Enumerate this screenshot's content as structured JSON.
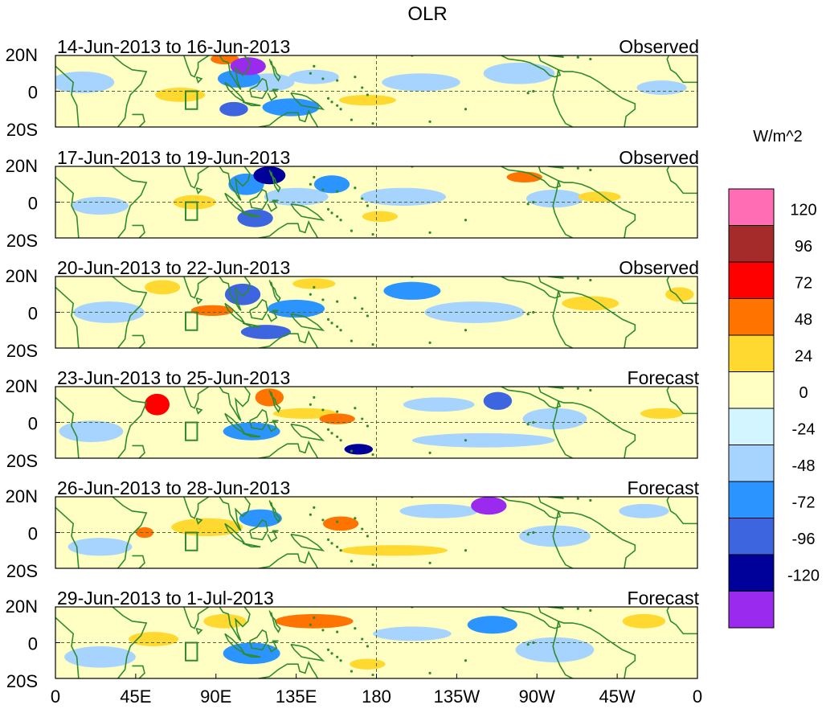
{
  "chart_data": {
    "type": "heatmap",
    "title": "OLR",
    "units_label": "W/m^2",
    "y_ticks": [
      "20N",
      "0",
      "20S"
    ],
    "x_ticks": [
      "0",
      "45E",
      "90E",
      "135E",
      "180",
      "135W",
      "90W",
      "45W",
      "0"
    ],
    "x_tick_lon": [
      0,
      45,
      90,
      135,
      180,
      225,
      270,
      315,
      360
    ],
    "lon_range": [
      0,
      360
    ],
    "lat_range": [
      -20,
      20
    ],
    "panels": [
      {
        "period": "14-Jun-2013 to 16-Jun-2013",
        "kind": "Observed"
      },
      {
        "period": "17-Jun-2013 to 19-Jun-2013",
        "kind": "Observed"
      },
      {
        "period": "20-Jun-2013 to 22-Jun-2013",
        "kind": "Observed"
      },
      {
        "period": "23-Jun-2013 to 25-Jun-2013",
        "kind": "Forecast"
      },
      {
        "period": "26-Jun-2013 to 28-Jun-2013",
        "kind": "Forecast"
      },
      {
        "period": "29-Jun-2013 to 1-Jul-2013",
        "kind": "Forecast"
      }
    ],
    "colorbar": {
      "labels": [
        "120",
        "96",
        "72",
        "48",
        "24",
        "0",
        "-24",
        "-48",
        "-72",
        "-96",
        "-120"
      ],
      "colors": [
        "#ff6eb4",
        "#a52a2a",
        "#ff0000",
        "#ff7400",
        "#ffd92f",
        "#ffffc4",
        "#d2f5ff",
        "#a6d4ff",
        "#2b94ff",
        "#3d65e0",
        "#00009a",
        "#9a2aee"
      ]
    },
    "background_color": "#ffffc4",
    "land_color": "#2e8b2e",
    "features": [
      [
        {
          "lon": 70,
          "lat": -2,
          "rx": 14,
          "ry": 4,
          "v": 24
        },
        {
          "lon": 108,
          "lat": 14,
          "rx": 10,
          "ry": 5,
          "v": -120
        },
        {
          "lon": 95,
          "lat": 18,
          "rx": 8,
          "ry": 3,
          "v": 48
        },
        {
          "lon": 103,
          "lat": 7,
          "rx": 12,
          "ry": 5,
          "v": -48
        },
        {
          "lon": 120,
          "lat": 5,
          "rx": 14,
          "ry": 5,
          "v": -24
        },
        {
          "lon": 100,
          "lat": -10,
          "rx": 8,
          "ry": 4,
          "v": -72
        },
        {
          "lon": 132,
          "lat": -9,
          "rx": 16,
          "ry": 5,
          "v": -48
        },
        {
          "lon": 145,
          "lat": 8,
          "rx": 14,
          "ry": 4,
          "v": -24
        },
        {
          "lon": 205,
          "lat": 5,
          "rx": 22,
          "ry": 5,
          "v": -24
        },
        {
          "lon": 260,
          "lat": 10,
          "rx": 20,
          "ry": 6,
          "v": -24
        },
        {
          "lon": 15,
          "lat": 5,
          "rx": 18,
          "ry": 6,
          "v": -24
        },
        {
          "lon": 340,
          "lat": 2,
          "rx": 14,
          "ry": 4,
          "v": -24
        },
        {
          "lon": 175,
          "lat": -5,
          "rx": 16,
          "ry": 3,
          "v": 24
        }
      ],
      [
        {
          "lon": 78,
          "lat": 0,
          "rx": 12,
          "ry": 4,
          "v": 24
        },
        {
          "lon": 120,
          "lat": 15,
          "rx": 9,
          "ry": 5,
          "v": -96
        },
        {
          "lon": 107,
          "lat": 10,
          "rx": 10,
          "ry": 6,
          "v": -48
        },
        {
          "lon": 112,
          "lat": -9,
          "rx": 10,
          "ry": 5,
          "v": -72
        },
        {
          "lon": 135,
          "lat": 3,
          "rx": 18,
          "ry": 5,
          "v": -24
        },
        {
          "lon": 155,
          "lat": 10,
          "rx": 10,
          "ry": 5,
          "v": -48
        },
        {
          "lon": 195,
          "lat": 3,
          "rx": 24,
          "ry": 5,
          "v": -24
        },
        {
          "lon": 263,
          "lat": 14,
          "rx": 10,
          "ry": 3,
          "v": 48
        },
        {
          "lon": 280,
          "lat": 2,
          "rx": 16,
          "ry": 5,
          "v": -24
        },
        {
          "lon": 305,
          "lat": 3,
          "rx": 12,
          "ry": 3,
          "v": 24
        },
        {
          "lon": 25,
          "lat": -2,
          "rx": 16,
          "ry": 5,
          "v": -24
        },
        {
          "lon": 182,
          "lat": -8,
          "rx": 10,
          "ry": 3,
          "v": 24
        }
      ],
      [
        {
          "lon": 60,
          "lat": 14,
          "rx": 10,
          "ry": 4,
          "v": 24
        },
        {
          "lon": 88,
          "lat": 1,
          "rx": 12,
          "ry": 3,
          "v": 48
        },
        {
          "lon": 105,
          "lat": 10,
          "rx": 10,
          "ry": 6,
          "v": -72
        },
        {
          "lon": 118,
          "lat": -11,
          "rx": 14,
          "ry": 4,
          "v": -72
        },
        {
          "lon": 135,
          "lat": 2,
          "rx": 16,
          "ry": 5,
          "v": -48
        },
        {
          "lon": 145,
          "lat": 16,
          "rx": 12,
          "ry": 3,
          "v": 24
        },
        {
          "lon": 200,
          "lat": 12,
          "rx": 16,
          "ry": 5,
          "v": -48
        },
        {
          "lon": 235,
          "lat": 0,
          "rx": 28,
          "ry": 6,
          "v": -24
        },
        {
          "lon": 300,
          "lat": 5,
          "rx": 16,
          "ry": 4,
          "v": 24
        },
        {
          "lon": 30,
          "lat": 0,
          "rx": 20,
          "ry": 6,
          "v": -24
        },
        {
          "lon": 350,
          "lat": 10,
          "rx": 8,
          "ry": 4,
          "v": 24
        }
      ],
      [
        {
          "lon": 57,
          "lat": 10,
          "rx": 7,
          "ry": 6,
          "v": 72
        },
        {
          "lon": 120,
          "lat": 14,
          "rx": 8,
          "ry": 5,
          "v": 48
        },
        {
          "lon": 110,
          "lat": -5,
          "rx": 16,
          "ry": 5,
          "v": -48
        },
        {
          "lon": 140,
          "lat": 5,
          "rx": 18,
          "ry": 3,
          "v": 24
        },
        {
          "lon": 158,
          "lat": 2,
          "rx": 10,
          "ry": 3,
          "v": 48
        },
        {
          "lon": 170,
          "lat": -15,
          "rx": 8,
          "ry": 3,
          "v": -96
        },
        {
          "lon": 248,
          "lat": 12,
          "rx": 8,
          "ry": 5,
          "v": -72
        },
        {
          "lon": 215,
          "lat": 10,
          "rx": 20,
          "ry": 4,
          "v": -24
        },
        {
          "lon": 280,
          "lat": 2,
          "rx": 18,
          "ry": 6,
          "v": -24
        },
        {
          "lon": 340,
          "lat": 5,
          "rx": 12,
          "ry": 3,
          "v": 24
        },
        {
          "lon": 20,
          "lat": -5,
          "rx": 18,
          "ry": 6,
          "v": -24
        },
        {
          "lon": 240,
          "lat": -10,
          "rx": 40,
          "ry": 4,
          "v": -24
        }
      ],
      [
        {
          "lon": 50,
          "lat": 0,
          "rx": 5,
          "ry": 3,
          "v": 48
        },
        {
          "lon": 85,
          "lat": 3,
          "rx": 20,
          "ry": 5,
          "v": 24
        },
        {
          "lon": 115,
          "lat": 8,
          "rx": 12,
          "ry": 5,
          "v": -48
        },
        {
          "lon": 160,
          "lat": 5,
          "rx": 10,
          "ry": 4,
          "v": 48
        },
        {
          "lon": 243,
          "lat": 15,
          "rx": 10,
          "ry": 5,
          "v": -120
        },
        {
          "lon": 215,
          "lat": 12,
          "rx": 22,
          "ry": 4,
          "v": -24
        },
        {
          "lon": 280,
          "lat": -2,
          "rx": 20,
          "ry": 6,
          "v": -24
        },
        {
          "lon": 25,
          "lat": -8,
          "rx": 18,
          "ry": 5,
          "v": -24
        },
        {
          "lon": 330,
          "lat": 12,
          "rx": 14,
          "ry": 4,
          "v": -24
        },
        {
          "lon": 190,
          "lat": -10,
          "rx": 30,
          "ry": 3,
          "v": 24
        }
      ],
      [
        {
          "lon": 55,
          "lat": 2,
          "rx": 14,
          "ry": 4,
          "v": 24
        },
        {
          "lon": 95,
          "lat": 12,
          "rx": 12,
          "ry": 4,
          "v": 24
        },
        {
          "lon": 145,
          "lat": 12,
          "rx": 22,
          "ry": 4,
          "v": 48
        },
        {
          "lon": 110,
          "lat": -6,
          "rx": 16,
          "ry": 6,
          "v": -48
        },
        {
          "lon": 245,
          "lat": 10,
          "rx": 14,
          "ry": 5,
          "v": -48
        },
        {
          "lon": 200,
          "lat": 5,
          "rx": 22,
          "ry": 4,
          "v": -24
        },
        {
          "lon": 280,
          "lat": -4,
          "rx": 22,
          "ry": 7,
          "v": -24
        },
        {
          "lon": 25,
          "lat": -8,
          "rx": 20,
          "ry": 6,
          "v": -24
        },
        {
          "lon": 330,
          "lat": 12,
          "rx": 12,
          "ry": 4,
          "v": 24
        },
        {
          "lon": 175,
          "lat": -12,
          "rx": 10,
          "ry": 3,
          "v": 24
        }
      ]
    ]
  }
}
